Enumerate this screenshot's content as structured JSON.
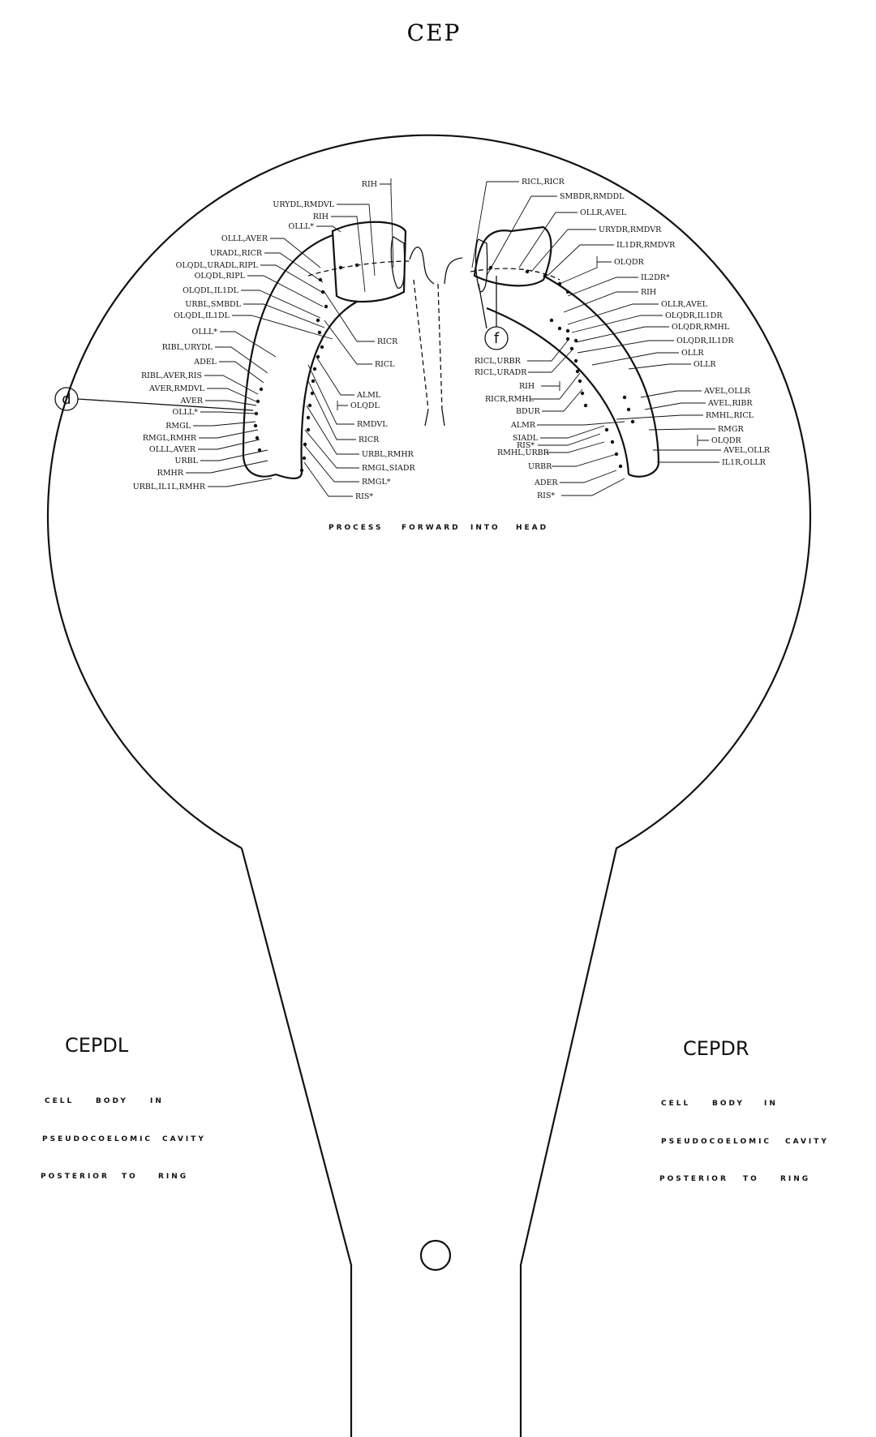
{
  "title": "CEP",
  "center_caption": [
    "PROCESS",
    "FORWARD",
    "INTO",
    "HEAD"
  ],
  "circle_labels": {
    "left": "d",
    "right": "f"
  },
  "left_cell": {
    "name": "CEPDL",
    "lines": [
      [
        "CELL",
        "BODY",
        "IN"
      ],
      [
        "PSEUDOCOELOMIC",
        "CAVITY"
      ],
      [
        "POSTERIOR",
        "TO",
        "RING"
      ]
    ]
  },
  "right_cell": {
    "name": "CEPDR",
    "lines": [
      [
        "CELL",
        "BODY",
        "IN"
      ],
      [
        "PSEUDOCOELOMIC",
        "CAVITY"
      ],
      [
        "POSTERIOR",
        "TO",
        "RING"
      ]
    ]
  },
  "left_labels_outer": [
    "OLLL*",
    "OLLL,AVER",
    "URADL,RICR",
    "OLQDL,URADL,RIPL",
    "OLQDL,RIPL",
    "OLQDL,IL1DL",
    "URBL,SMBDL",
    "OLQDL,IL1DL",
    "OLLL*",
    "RIBL,URYDL",
    "ADEL",
    "RIBL,AVER,RIS",
    "AVER,RMDVL",
    "AVER",
    "OLLL*",
    "RMGL",
    "RMGL,RMHR",
    "OLLL,AVER",
    "URBL",
    "RMHR",
    "URBL,IL1L,RMHR"
  ],
  "left_labels_top": [
    "RIH",
    "URYDL,RMDVL",
    "RIH"
  ],
  "left_labels_inner": [
    "RICR",
    "RICL",
    "ALML",
    "OLQDL",
    "RMDVL",
    "RICR",
    "URBL,RMHR",
    "RMGL,SIADR",
    "RMGL*",
    "RIS*"
  ],
  "right_labels_top": [
    "RICL,RICR",
    "SMBDR,RMDDL",
    "OLLR,AVEL",
    "URYDR,RMDVR",
    "IL1DR,RMDVR"
  ],
  "right_labels_outer": [
    "OLQDR",
    "IL2DR*",
    "RIH",
    "OLLR,AVEL",
    "OLQDR,IL1DR",
    "OLQDR,RMHL",
    "OLQDR,IL1DR",
    "OLLR",
    "OLLR",
    "AVEL,OLLR",
    "AVEL,RIBR",
    "RMHL,RICL",
    "RMGR",
    "OLQDR",
    "AVEL,OLLR",
    "IL1R,OLLR"
  ],
  "right_labels_inner": [
    "RICL,URBR",
    "RICL,URADR",
    "RIH",
    "RICR,RMHL",
    "BDUR",
    "ALMR",
    "SIADL",
    "RIS*",
    "RMHL,URBR",
    "URBR",
    "ADER",
    "RIS*"
  ]
}
